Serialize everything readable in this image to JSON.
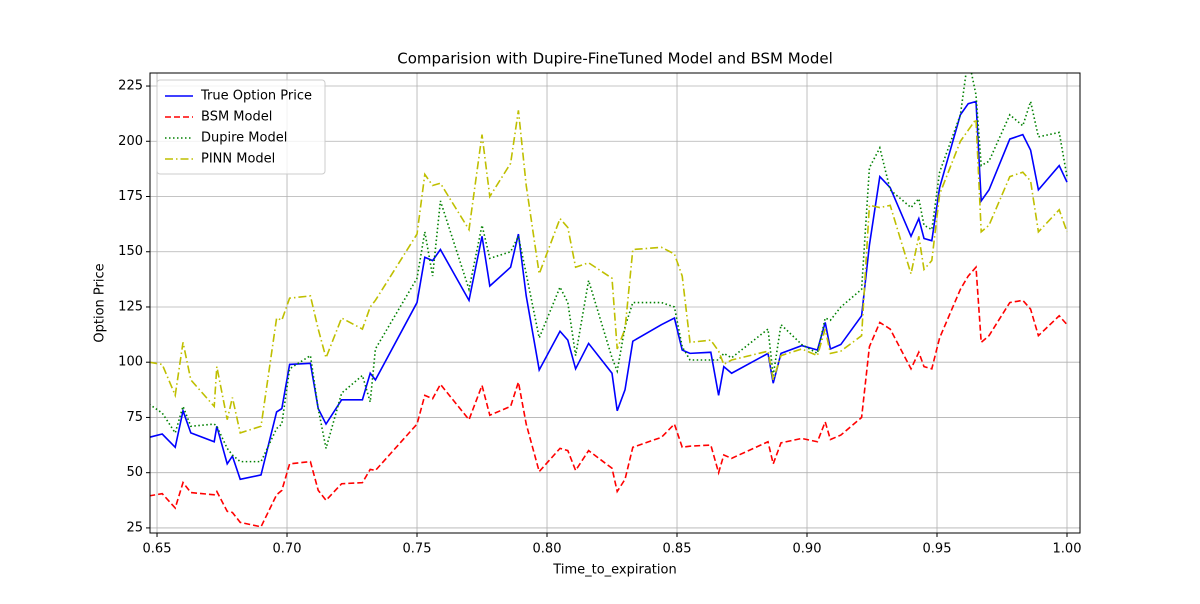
{
  "chart_data": {
    "type": "line",
    "title": "Comparision with Dupire-FineTuned Model and BSM Model",
    "xlabel": "Time_to_expiration",
    "ylabel": "Option Price",
    "x": [
      0.647,
      0.652,
      0.657,
      0.66,
      0.663,
      0.672,
      0.673,
      0.677,
      0.679,
      0.682,
      0.69,
      0.696,
      0.698,
      0.701,
      0.709,
      0.712,
      0.715,
      0.721,
      0.729,
      0.732,
      0.734,
      0.75,
      0.753,
      0.756,
      0.759,
      0.77,
      0.775,
      0.778,
      0.786,
      0.789,
      0.792,
      0.797,
      0.805,
      0.808,
      0.811,
      0.816,
      0.825,
      0.827,
      0.83,
      0.833,
      0.844,
      0.849,
      0.852,
      0.855,
      0.863,
      0.866,
      0.868,
      0.871,
      0.885,
      0.887,
      0.89,
      0.898,
      0.904,
      0.907,
      0.909,
      0.913,
      0.921,
      0.924,
      0.928,
      0.932,
      0.94,
      0.943,
      0.945,
      0.948,
      0.951,
      0.959,
      0.962,
      0.965,
      0.967,
      0.97,
      0.978,
      0.983,
      0.986,
      0.989,
      0.997,
      1.0
    ],
    "series": [
      {
        "name": "True Option Price",
        "color": "#0000ff",
        "dash": "solid",
        "values": [
          66,
          67.5,
          61.5,
          78,
          68,
          64,
          71,
          54,
          57.5,
          47,
          49,
          77.5,
          79,
          99,
          99.5,
          79,
          72,
          83,
          83,
          95,
          92,
          127,
          147.5,
          146,
          151,
          128,
          157,
          134.5,
          143,
          158,
          130,
          96.5,
          114,
          110,
          97,
          108.5,
          95,
          78,
          87.5,
          109.5,
          117,
          120,
          105.5,
          104,
          104.5,
          85,
          98,
          95,
          104,
          90.5,
          104,
          107.5,
          105.5,
          118,
          106,
          108,
          121,
          153,
          184,
          179,
          157,
          165,
          156,
          155,
          179,
          212,
          217,
          218,
          173,
          178,
          201,
          203,
          196,
          178,
          189,
          181.5
        ]
      },
      {
        "name": "BSM Model",
        "color": "#ff0000",
        "dash": "dashed",
        "values": [
          39.5,
          40.5,
          34,
          45.5,
          41,
          40,
          41.5,
          32.5,
          32,
          27.5,
          25.5,
          40,
          42,
          54,
          55,
          42,
          37.5,
          45,
          45.5,
          51.5,
          51,
          72,
          85,
          83.5,
          90,
          74,
          89.5,
          76,
          80,
          91,
          72,
          50.5,
          61,
          60,
          51,
          60,
          52,
          41.5,
          47,
          61.5,
          66,
          72,
          61.5,
          62,
          62.5,
          50,
          58,
          56.5,
          64,
          54,
          63.5,
          65.5,
          64,
          73,
          65,
          67,
          75,
          107,
          118,
          115,
          97,
          104.5,
          98,
          97,
          111,
          133,
          139,
          143,
          109,
          112,
          127,
          128,
          124,
          112,
          121,
          117
        ]
      },
      {
        "name": "Dupire Model",
        "color": "#008000",
        "dash": "dotted",
        "values": [
          81,
          77,
          68,
          80,
          71,
          72,
          71,
          61,
          58,
          55,
          55,
          70,
          72,
          97,
          103,
          79,
          61,
          86,
          94,
          82,
          106,
          138,
          159,
          139,
          173,
          133,
          162,
          147,
          150,
          157,
          140,
          111,
          134,
          127,
          103,
          137,
          102,
          96,
          116,
          127,
          127,
          125,
          107,
          101,
          101,
          101,
          104,
          102,
          115,
          94,
          117,
          108,
          104,
          120,
          119,
          125,
          133,
          188,
          197,
          178,
          170,
          174,
          162,
          160,
          186,
          212,
          238,
          221,
          189,
          191,
          212,
          207,
          218,
          202,
          204,
          184
        ]
      },
      {
        "name": "PINN Model",
        "color": "#bfbf00",
        "dash": "dashdot",
        "values": [
          100,
          99,
          85,
          109,
          92,
          80,
          98,
          74,
          84,
          68,
          71,
          120,
          119,
          129,
          130,
          115,
          102,
          120,
          115,
          125,
          128,
          158,
          185,
          180,
          181,
          160,
          203,
          175,
          190,
          214,
          180,
          140,
          165,
          161,
          143,
          145,
          138,
          106,
          115,
          151,
          152,
          149,
          139,
          109,
          110,
          105,
          99,
          101,
          105,
          92,
          103,
          106,
          103,
          115,
          104,
          105,
          112,
          171,
          170,
          171,
          140,
          157,
          142,
          146,
          176,
          200,
          205,
          210,
          159,
          162,
          184,
          186,
          182,
          159,
          169,
          159
        ]
      }
    ],
    "xlim": [
      0.6473,
      1.005
    ],
    "ylim": [
      22.7,
      230.9
    ],
    "xticks": [
      0.65,
      {
        "value": 0.7,
        "label": "0.70"
      },
      0.75,
      {
        "value": 0.8,
        "label": "0.80"
      },
      0.85,
      {
        "value": 0.9,
        "label": "0.90"
      },
      0.95,
      {
        "value": 1.0,
        "label": "1.00"
      }
    ],
    "yticks": [
      25,
      50,
      75,
      100,
      125,
      150,
      175,
      200,
      225
    ],
    "grid": true,
    "legend": "upper left"
  }
}
